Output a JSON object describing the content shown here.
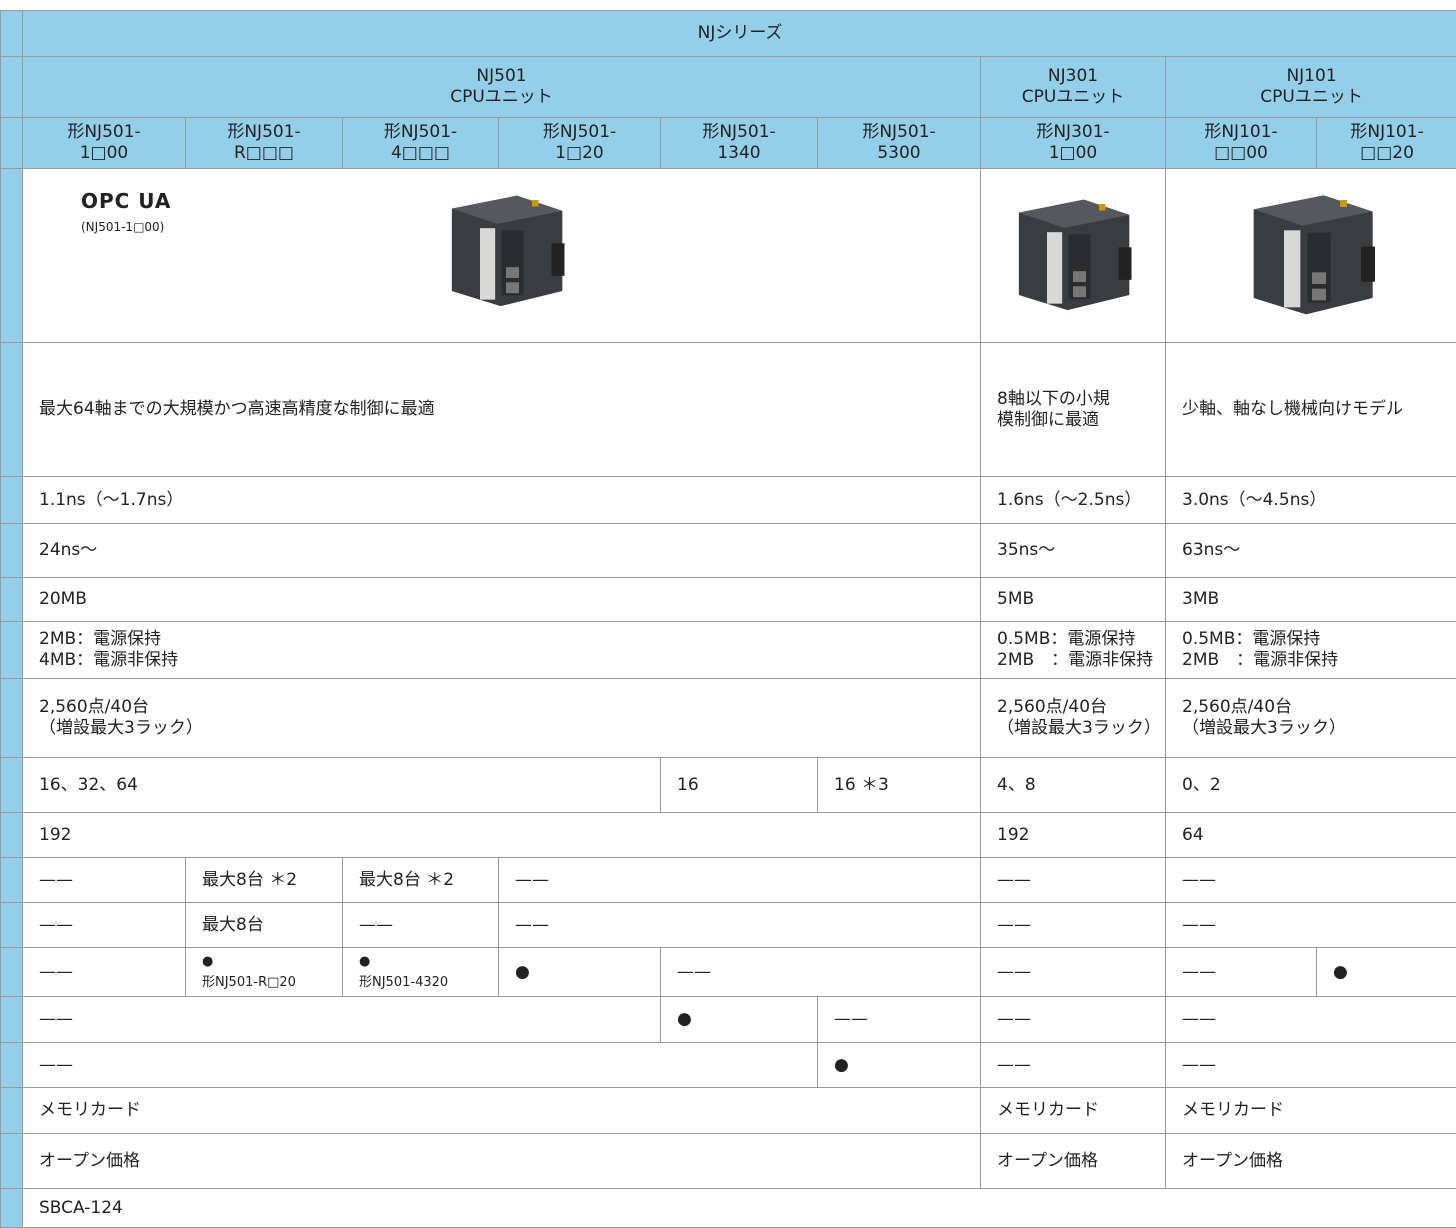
{
  "header": {
    "series": "NJシリーズ",
    "groups": [
      "NJ501\nCPUユニット",
      "NJ301\nCPUユニット",
      "NJ101\nCPUユニット"
    ],
    "models": [
      "形NJ501-\n1□00",
      "形NJ501-\nR□□□",
      "形NJ501-\n4□□□",
      "形NJ501-\n1□20",
      "形NJ501-\n1340",
      "形NJ501-\n5300",
      "形NJ301-\n1□00",
      "形NJ101-\n□□00",
      "形NJ101-\n□□20"
    ]
  },
  "images": {
    "logo": "OPC UA",
    "logo_note": "(NJ501-1□00)"
  },
  "rows": [
    [
      "最大64軸までの大規模かつ高速高精度な制御に最適",
      "8軸以下の小規\n模制御に最適",
      "少軸、軸なし機械向けモデル"
    ],
    [
      "1.1ns（～1.7ns）",
      "1.6ns（～2.5ns）",
      "3.0ns（～4.5ns）"
    ],
    [
      "24ns～",
      "35ns～",
      "63ns～"
    ],
    [
      "20MB",
      "5MB",
      "3MB"
    ],
    [
      "2MB：電源保持\n4MB：電源非保持",
      "0.5MB：電源保持\n2MB　：電源非保持",
      "0.5MB：電源保持\n2MB　：電源非保持"
    ],
    [
      "2,560点/40台\n（増設最大3ラック）",
      "2,560点/40台\n（増設最大3ラック）",
      "2,560点/40台\n（増設最大3ラック）"
    ],
    [
      "16、32、64",
      "16",
      "16 ＊3",
      "4、8",
      "0、2"
    ],
    [
      "192",
      "192",
      "64"
    ],
    [
      "——",
      "最大8台 ＊2",
      "最大8台 ＊2",
      "——",
      "——",
      "——"
    ],
    [
      "——",
      "最大8台",
      "——",
      "——",
      "——",
      "——"
    ],
    [
      "——",
      "●\n形NJ501-R□20",
      "●\n形NJ501-4320",
      "●",
      "——",
      "——",
      "——",
      "●"
    ],
    [
      "——",
      "●",
      "——",
      "——",
      "——"
    ],
    [
      "——",
      "●",
      "——",
      "——"
    ],
    [
      "メモリカード",
      "メモリカード",
      "メモリカード"
    ],
    [
      "オープン価格",
      "オープン価格",
      "オープン価格"
    ],
    [
      "SBCA-124"
    ]
  ]
}
